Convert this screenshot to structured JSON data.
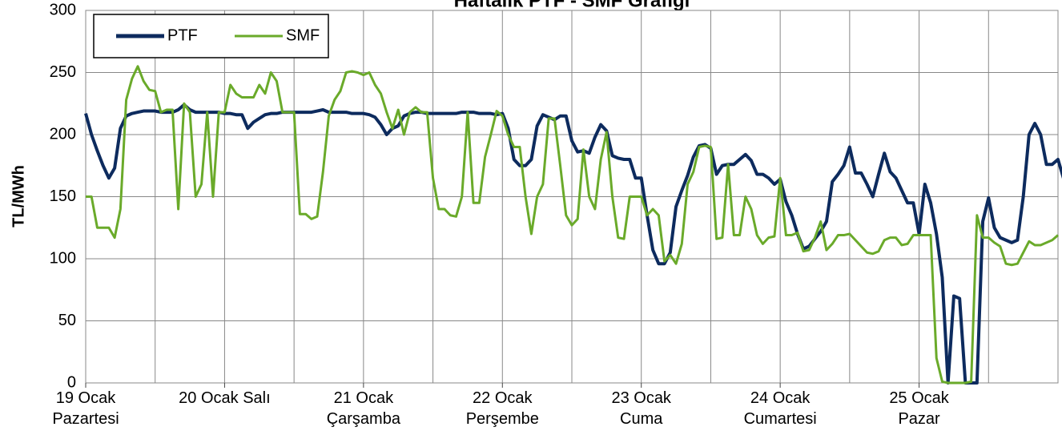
{
  "chart_data": {
    "type": "line",
    "title": "Haftalık PTF - SMF Grafiği",
    "ylabel": "TL/MWh",
    "xlim": [
      0,
      168
    ],
    "xticks": [
      {
        "value": 0,
        "label": "19 Ocak\nPazartesi"
      },
      {
        "value": 24,
        "label": "20 Ocak Salı"
      },
      {
        "value": 48,
        "label": "21 Ocak\nÇarşamba"
      },
      {
        "value": 72,
        "label": "22 Ocak\nPerşembe"
      },
      {
        "value": 96,
        "label": "23 Ocak\nCuma"
      },
      {
        "value": 120,
        "label": "24 Ocak\nCumartesi"
      },
      {
        "value": 144,
        "label": "25 Ocak\nPazar"
      }
    ],
    "xminor": [
      12,
      36,
      60,
      84,
      108,
      132,
      156,
      168
    ],
    "ylim": [
      0,
      300
    ],
    "yticks": [
      0,
      50,
      100,
      150,
      200,
      250,
      300
    ],
    "grid": true,
    "legend": "upper left",
    "series": [
      {
        "name": "PTF",
        "color": "#0d2b5e",
        "values": [
          217,
          200,
          187,
          175,
          165,
          173,
          205,
          215,
          217,
          218,
          219,
          219,
          219,
          218,
          218,
          218,
          220,
          224,
          220,
          218,
          218,
          218,
          218,
          218,
          217,
          217,
          216,
          216,
          205,
          210,
          213,
          216,
          217,
          217,
          218,
          218,
          218,
          218,
          218,
          218,
          219,
          220,
          218,
          218,
          218,
          218,
          217,
          217,
          217,
          216,
          214,
          208,
          200,
          205,
          207,
          215,
          217,
          218,
          218,
          217,
          217,
          217,
          217,
          217,
          217,
          218,
          218,
          218,
          217,
          217,
          217,
          216,
          217,
          205,
          180,
          175,
          175,
          180,
          207,
          216,
          214,
          212,
          215,
          215,
          195,
          186,
          187,
          185,
          198,
          208,
          203,
          183,
          181,
          180,
          180,
          165,
          165,
          135,
          107,
          96,
          96,
          105,
          142,
          155,
          167,
          182,
          191,
          192,
          189,
          168,
          175,
          176,
          176,
          180,
          184,
          179,
          168,
          168,
          165,
          160,
          164,
          146,
          135,
          120,
          108,
          110,
          116,
          122,
          130,
          162,
          168,
          175,
          190,
          169,
          169,
          160,
          150,
          168,
          185,
          170,
          165,
          155,
          145,
          145,
          120,
          160,
          145,
          120,
          85,
          0,
          70,
          68,
          0,
          0,
          0,
          130,
          149,
          125,
          117,
          115,
          113,
          115,
          150,
          200,
          209,
          200,
          176,
          176,
          180,
          164
        ]
      },
      {
        "name": "SMF",
        "color": "#6aaa2a",
        "values": [
          150,
          150,
          125,
          125,
          125,
          117,
          140,
          228,
          245,
          255,
          243,
          236,
          235,
          218,
          220,
          220,
          140,
          225,
          218,
          150,
          160,
          218,
          150,
          218,
          218,
          240,
          233,
          230,
          230,
          230,
          240,
          233,
          250,
          243,
          218,
          218,
          218,
          136,
          136,
          132,
          134,
          170,
          215,
          228,
          235,
          250,
          251,
          250,
          248,
          250,
          240,
          233,
          218,
          205,
          220,
          200,
          218,
          222,
          218,
          218,
          165,
          140,
          140,
          135,
          134,
          150,
          218,
          145,
          145,
          182,
          200,
          219,
          215,
          200,
          190,
          190,
          150,
          120,
          150,
          160,
          213,
          213,
          175,
          135,
          127,
          132,
          188,
          150,
          140,
          180,
          202,
          150,
          117,
          116,
          150,
          150,
          150,
          135,
          140,
          135,
          98,
          103,
          96,
          112,
          160,
          170,
          190,
          191,
          190,
          116,
          117,
          176,
          119,
          119,
          150,
          140,
          119,
          112,
          117,
          118,
          165,
          119,
          119,
          121,
          106,
          107,
          117,
          130,
          107,
          112,
          119,
          119,
          120,
          115,
          110,
          105,
          104,
          106,
          115,
          117,
          117,
          111,
          112,
          119,
          119,
          119,
          119,
          20,
          1,
          0,
          0,
          0,
          0,
          1,
          135,
          117,
          117,
          113,
          110,
          96,
          95,
          96,
          105,
          114,
          111,
          111,
          113,
          115,
          119
        ]
      }
    ]
  }
}
